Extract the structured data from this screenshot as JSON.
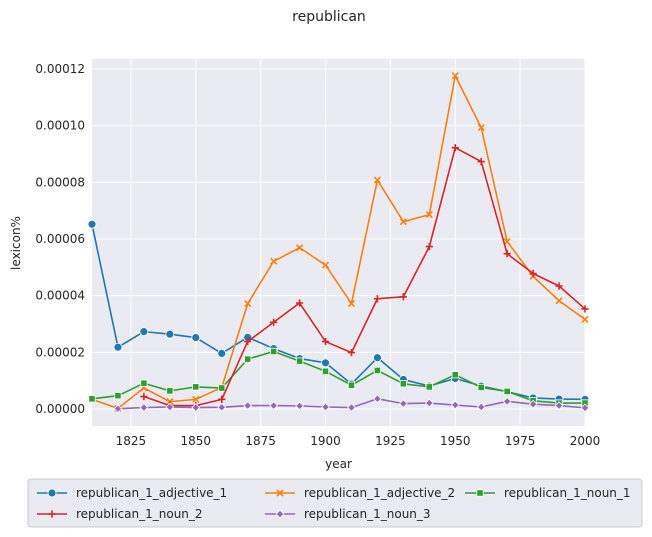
{
  "chart_data": {
    "type": "line",
    "title": "republican",
    "xlabel": "year",
    "ylabel": "lexicon%",
    "xlim": [
      1810,
      2000
    ],
    "ylim": [
      -6e-06,
      0.0001235
    ],
    "xticks": [
      1825,
      1850,
      1875,
      1900,
      1925,
      1950,
      1975,
      2000
    ],
    "xtick_labels": [
      "1825",
      "1850",
      "1875",
      "1900",
      "1925",
      "1950",
      "1975",
      "2000"
    ],
    "yticks": [
      0,
      2e-05,
      4e-05,
      6e-05,
      8e-05,
      0.0001,
      0.00012
    ],
    "ytick_labels": [
      "0.00000",
      "0.00002",
      "0.00004",
      "0.00006",
      "0.00008",
      "0.00010",
      "0.00012"
    ],
    "grid": true,
    "legend_position": "below",
    "series": [
      {
        "name": "republican_1_adjective_1",
        "color": "#1f77b4",
        "marker": "circle",
        "x": [
          1810,
          1820,
          1830,
          1840,
          1850,
          1860,
          1870,
          1880,
          1890,
          1900,
          1910,
          1920,
          1930,
          1940,
          1950,
          1960,
          1970,
          1980,
          1990,
          2000
        ],
        "y": [
          6.52e-05,
          2.18e-05,
          2.73e-05,
          2.64e-05,
          2.52e-05,
          1.96e-05,
          2.53e-05,
          2.13e-05,
          1.78e-05,
          1.63e-05,
          8.8e-06,
          1.81e-05,
          1.04e-05,
          8.1e-06,
          1.08e-05,
          8.1e-06,
          6.1e-06,
          3.9e-06,
          3.5e-06,
          3.4e-06
        ]
      },
      {
        "name": "republican_1_adjective_2",
        "color": "#ff7f0e",
        "marker": "x",
        "x": [
          1810,
          1820,
          1830,
          1840,
          1850,
          1860,
          1870,
          1880,
          1890,
          1900,
          1910,
          1920,
          1930,
          1940,
          1950,
          1960,
          1970,
          1980,
          1990,
          2000
        ],
        "y": [
          3.4e-06,
          2e-07,
          7.4e-06,
          2.6e-06,
          3.4e-06,
          7.6e-06,
          3.72e-05,
          5.21e-05,
          5.69e-05,
          5.08e-05,
          3.72e-05,
          8.08e-05,
          6.61e-05,
          6.86e-05,
          0.0001176,
          9.93e-05,
          5.91e-05,
          4.68e-05,
          3.82e-05,
          3.16e-05
        ]
      },
      {
        "name": "republican_1_noun_1",
        "color": "#2ca02c",
        "marker": "square",
        "x": [
          1810,
          1820,
          1830,
          1840,
          1850,
          1860,
          1870,
          1880,
          1890,
          1900,
          1910,
          1920,
          1930,
          1940,
          1950,
          1960,
          1970,
          1980,
          1990,
          2000
        ],
        "y": [
          3.6e-06,
          4.7e-06,
          9.1e-06,
          6.4e-06,
          7.8e-06,
          7.4e-06,
          1.76e-05,
          2.03e-05,
          1.69e-05,
          1.33e-05,
          8.4e-06,
          1.36e-05,
          8.9e-06,
          7.8e-06,
          1.21e-05,
          7.6e-06,
          6.2e-06,
          2.9e-06,
          2.1e-06,
          2.1e-06
        ]
      },
      {
        "name": "republican_1_noun_2",
        "color": "#d62728",
        "marker": "plus",
        "x": [
          1830,
          1840,
          1850,
          1860,
          1870,
          1880,
          1890,
          1900,
          1910,
          1920,
          1930,
          1940,
          1950,
          1960,
          1970,
          1980,
          1990,
          2000
        ],
        "y": [
          4.4e-06,
          1.2e-06,
          1.2e-06,
          3.4e-06,
          2.38e-05,
          3.06e-05,
          3.74e-05,
          2.38e-05,
          1.99e-05,
          3.89e-05,
          3.96e-05,
          5.73e-05,
          9.22e-05,
          8.73e-05,
          5.48e-05,
          4.78e-05,
          4.34e-05,
          3.53e-05
        ]
      },
      {
        "name": "republican_1_noun_3",
        "color": "#9467bd",
        "marker": "diamond",
        "x": [
          1820,
          1830,
          1840,
          1850,
          1860,
          1870,
          1880,
          1890,
          1900,
          1910,
          1920,
          1930,
          1940,
          1950,
          1960,
          1970,
          1980,
          1990,
          2000
        ],
        "y": [
          1e-07,
          5e-07,
          7e-07,
          5e-07,
          6e-07,
          1.2e-06,
          1.2e-06,
          1.1e-06,
          7e-07,
          5e-07,
          3.6e-06,
          1.9e-06,
          2.1e-06,
          1.4e-06,
          7e-07,
          2.7e-06,
          1.7e-06,
          1.2e-06,
          4e-07
        ]
      }
    ]
  }
}
